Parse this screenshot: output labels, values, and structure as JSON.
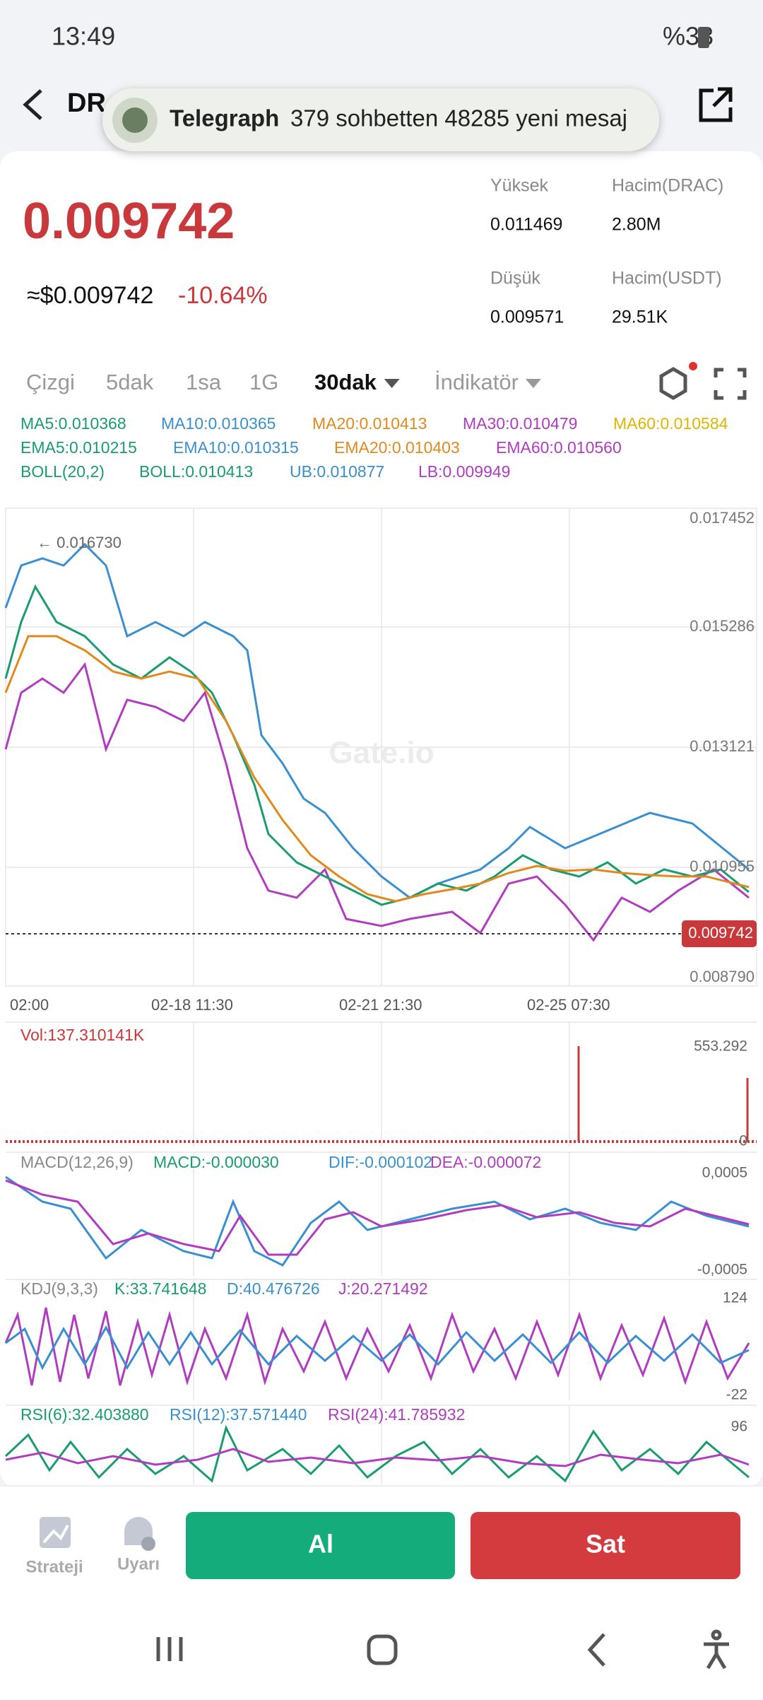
{
  "status_bar": {
    "time": "13:49",
    "battery": "%33"
  },
  "header": {
    "title": "DR"
  },
  "notification": {
    "app": "Telegraph",
    "message": "379 sohbetten 48285 yeni mesaj"
  },
  "price": {
    "last": "0.009742",
    "usd": "≈$0.009742",
    "change": "-10.64%"
  },
  "stats": [
    {
      "label": "Yüksek",
      "value": "0.011469"
    },
    {
      "label": "Hacim(DRAC)",
      "value": "2.80M"
    },
    {
      "label": "Düşük",
      "value": "0.009571"
    },
    {
      "label": "Hacim(USDT)",
      "value": "29.51K"
    }
  ],
  "tabs": [
    "Çizgi",
    "5dak",
    "1sa",
    "1G",
    "30dak",
    "İndikatör"
  ],
  "indicators": [
    [
      {
        "text": "MA5:0.010368",
        "color": "#1a9c6f"
      },
      {
        "text": "MA10:0.010365",
        "color": "#3a8fd0"
      },
      {
        "text": "MA20:0.010413",
        "color": "#e08a1e"
      },
      {
        "text": "MA30:0.010479",
        "color": "#b03cc0"
      },
      {
        "text": "MA60:0.010584",
        "color": "#e0b400"
      }
    ],
    [
      {
        "text": "EMA5:0.010215",
        "color": "#1a9c6f"
      },
      {
        "text": "EMA10:0.010315",
        "color": "#3a8fd0"
      },
      {
        "text": "EMA20:0.010403",
        "color": "#e08a1e"
      },
      {
        "text": "EMA60:0.010560",
        "color": "#b03cc0"
      }
    ],
    [
      {
        "text": "BOLL(20,2)",
        "color": "#1a9c6f"
      },
      {
        "text": "BOLL:0.010413",
        "color": "#1a9c6f"
      },
      {
        "text": "UB:0.010877",
        "color": "#3a8fd0"
      },
      {
        "text": "LB:0.009949",
        "color": "#b03cc0"
      }
    ]
  ],
  "main_chart": {
    "price_axis": [
      "0.017452",
      "0.015286",
      "0.013121",
      "0.010955",
      "0.008790"
    ],
    "max_marker": "← 0.016730",
    "current": "0.009742",
    "watermark": "Gate.io",
    "time_axis": [
      "02:00",
      "02-18 11:30",
      "02-21 21:30",
      "02-25 07:30"
    ]
  },
  "volume": {
    "label": "Vol:137.310141K",
    "max": "553.292",
    "min": "0"
  },
  "macd": {
    "title": "MACD(12,26,9)",
    "items": [
      {
        "text": "MACD:-0.000030",
        "color": "#1a9c6f"
      },
      {
        "text": "DIF:-0.000102",
        "color": "#3a8fd0"
      },
      {
        "text": "DEA:-0.000072",
        "color": "#b03cc0"
      }
    ],
    "axis": [
      "0,0005",
      "-0,0005"
    ]
  },
  "kdj": {
    "title": "KDJ(9,3,3)",
    "items": [
      {
        "text": "K:33.741648",
        "color": "#1a9c6f"
      },
      {
        "text": "D:40.476726",
        "color": "#3a8fd0"
      },
      {
        "text": "J:20.271492",
        "color": "#b03cc0"
      }
    ],
    "axis": [
      "124",
      "-22"
    ]
  },
  "rsi": {
    "items": [
      {
        "text": "RSI(6):32.403880",
        "color": "#1a9c6f"
      },
      {
        "text": "RSI(12):37.571440",
        "color": "#3a8fd0"
      },
      {
        "text": "RSI(24):41.785932",
        "color": "#b03cc0"
      }
    ],
    "axis": [
      "96"
    ]
  },
  "bottom_bar": {
    "strategy": "Strateji",
    "alert": "Uyarı",
    "buy": "Al",
    "sell": "Sat"
  }
}
